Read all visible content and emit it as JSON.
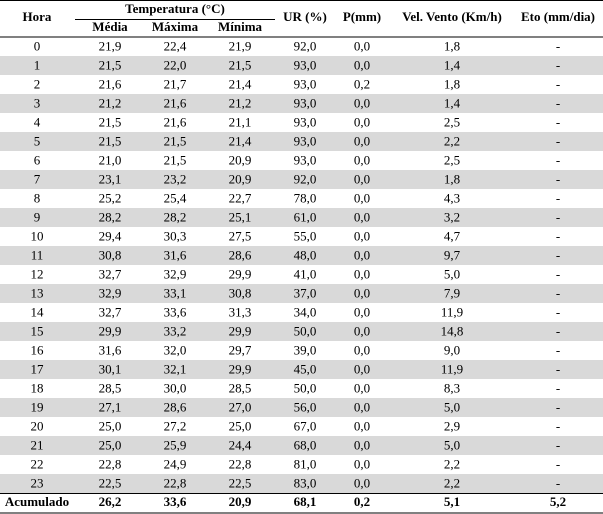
{
  "table": {
    "header": {
      "group": "Temperatura (°C)",
      "columns": [
        "Hora",
        "Média",
        "Máxima",
        "Mínima",
        "UR (%)",
        "P(mm)",
        "Vel. Vento (Km/h)",
        "Eto (mm/dia)"
      ]
    },
    "rows": [
      [
        "0",
        "21,9",
        "22,4",
        "21,9",
        "92,0",
        "0,0",
        "1,8",
        "-"
      ],
      [
        "1",
        "21,5",
        "22,0",
        "21,5",
        "93,0",
        "0,0",
        "1,4",
        "-"
      ],
      [
        "2",
        "21,6",
        "21,7",
        "21,4",
        "93,0",
        "0,2",
        "1,8",
        "-"
      ],
      [
        "3",
        "21,2",
        "21,6",
        "21,2",
        "93,0",
        "0,0",
        "1,4",
        "-"
      ],
      [
        "4",
        "21,5",
        "21,6",
        "21,1",
        "93,0",
        "0,0",
        "2,5",
        "-"
      ],
      [
        "5",
        "21,5",
        "21,5",
        "21,4",
        "93,0",
        "0,0",
        "2,2",
        "-"
      ],
      [
        "6",
        "21,0",
        "21,5",
        "20,9",
        "93,0",
        "0,0",
        "2,5",
        "-"
      ],
      [
        "7",
        "23,1",
        "23,2",
        "20,9",
        "92,0",
        "0,0",
        "1,8",
        "-"
      ],
      [
        "8",
        "25,2",
        "25,4",
        "22,7",
        "78,0",
        "0,0",
        "4,3",
        "-"
      ],
      [
        "9",
        "28,2",
        "28,2",
        "25,1",
        "61,0",
        "0,0",
        "3,2",
        "-"
      ],
      [
        "10",
        "29,4",
        "30,3",
        "27,5",
        "55,0",
        "0,0",
        "4,7",
        "-"
      ],
      [
        "11",
        "30,8",
        "31,6",
        "28,6",
        "48,0",
        "0,0",
        "9,7",
        "-"
      ],
      [
        "12",
        "32,7",
        "32,9",
        "29,9",
        "41,0",
        "0,0",
        "5,0",
        "-"
      ],
      [
        "13",
        "32,9",
        "33,1",
        "30,8",
        "37,0",
        "0,0",
        "7,9",
        "-"
      ],
      [
        "14",
        "32,7",
        "33,6",
        "31,3",
        "34,0",
        "0,0",
        "11,9",
        "-"
      ],
      [
        "15",
        "29,9",
        "33,2",
        "29,9",
        "50,0",
        "0,0",
        "14,8",
        "-"
      ],
      [
        "16",
        "31,6",
        "32,0",
        "29,7",
        "39,0",
        "0,0",
        "9,0",
        "-"
      ],
      [
        "17",
        "30,1",
        "32,1",
        "29,9",
        "45,0",
        "0,0",
        "11,9",
        "-"
      ],
      [
        "18",
        "28,5",
        "30,0",
        "28,5",
        "50,0",
        "0,0",
        "8,3",
        "-"
      ],
      [
        "19",
        "27,1",
        "28,6",
        "27,0",
        "56,0",
        "0,0",
        "5,0",
        "-"
      ],
      [
        "20",
        "25,0",
        "27,2",
        "25,0",
        "67,0",
        "0,0",
        "2,9",
        "-"
      ],
      [
        "21",
        "25,0",
        "25,9",
        "24,4",
        "68,0",
        "0,0",
        "5,0",
        "-"
      ],
      [
        "22",
        "22,8",
        "24,9",
        "22,8",
        "81,0",
        "0,0",
        "2,2",
        "-"
      ],
      [
        "23",
        "22,5",
        "22,8",
        "22,5",
        "83,0",
        "0,0",
        "2,2",
        "-"
      ]
    ],
    "footer": [
      "Acumulado",
      "26,2",
      "33,6",
      "20,9",
      "68,1",
      "0,2",
      "5,1",
      "5,2"
    ]
  }
}
